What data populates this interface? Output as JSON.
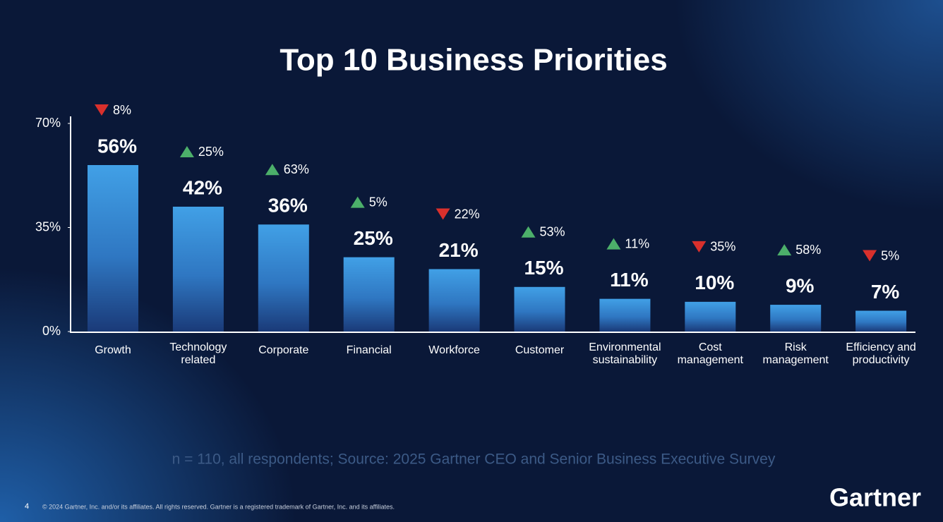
{
  "chart_data": {
    "type": "bar",
    "title": "Top 10 Business Priorities",
    "categories": [
      "Growth",
      "Technology related",
      "Corporate",
      "Financial",
      "Workforce",
      "Customer",
      "Environmental sustainability",
      "Cost management",
      "Risk management",
      "Efficiency and productivity"
    ],
    "values": [
      56,
      42,
      36,
      25,
      21,
      15,
      11,
      10,
      9,
      7
    ],
    "value_labels": [
      "56%",
      "42%",
      "36%",
      "25%",
      "21%",
      "15%",
      "11%",
      "10%",
      "9%",
      "7%"
    ],
    "color": "#3f9be0",
    "ylim": [
      0,
      70
    ],
    "yticks": [
      {
        "value": 0,
        "label": "0%"
      },
      {
        "value": 35,
        "label": "35%"
      },
      {
        "value": 70,
        "label": "70%"
      }
    ],
    "changes": {
      "values": [
        8,
        25,
        63,
        5,
        22,
        53,
        11,
        35,
        58,
        5
      ],
      "value_labels": [
        "8%",
        "25%",
        "63%",
        "5%",
        "22%",
        "53%",
        "11%",
        "35%",
        "58%",
        "5%"
      ],
      "direction": [
        "down",
        "up",
        "up",
        "up",
        "down",
        "up",
        "up",
        "down",
        "up",
        "down"
      ],
      "up_color": "#4caf6a",
      "down_color": "#d9302c"
    }
  },
  "footer": {
    "source": "n = 110, all respondents; Source: 2025 Gartner CEO and Senior Business Executive Survey",
    "page": "4",
    "copyright": "© 2024 Gartner, Inc. and/or its affiliates. All rights reserved. Gartner is a registered trademark of Gartner, Inc. and its affiliates.",
    "logo": "Gartner"
  }
}
